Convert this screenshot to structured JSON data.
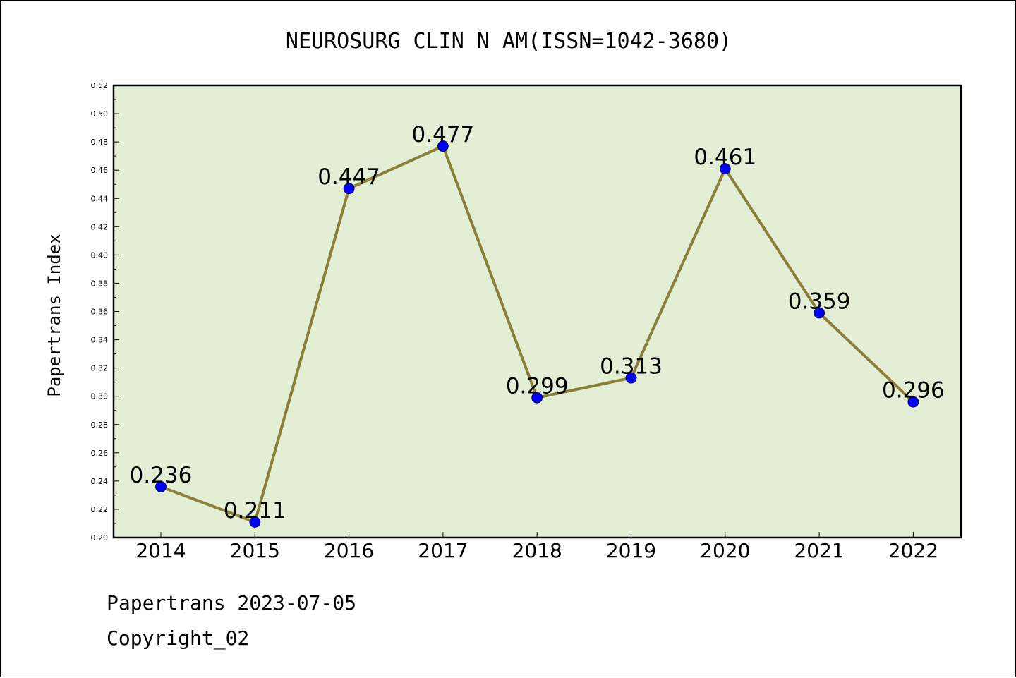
{
  "chart_data": {
    "type": "line",
    "title": "NEUROSURG CLIN N AM(ISSN=1042-3680)",
    "xlabel": "",
    "ylabel": "Papertrans Index",
    "categories": [
      "2014",
      "2015",
      "2016",
      "2017",
      "2018",
      "2019",
      "2020",
      "2021",
      "2022"
    ],
    "series": [
      {
        "values": [
          0.236,
          0.211,
          0.447,
          0.477,
          0.299,
          0.313,
          0.461,
          0.359,
          0.296
        ]
      }
    ],
    "data_labels": [
      "0.236",
      "0.211",
      "0.447",
      "0.477",
      "0.299",
      "0.313",
      "0.461",
      "0.359",
      "0.296"
    ],
    "ylim": [
      0.2,
      0.52
    ],
    "yticks": [
      "0.20",
      "0.22",
      "0.24",
      "0.26",
      "0.28",
      "0.30",
      "0.32",
      "0.34",
      "0.36",
      "0.38",
      "0.40",
      "0.42",
      "0.44",
      "0.46",
      "0.48",
      "0.50",
      "0.52"
    ],
    "grid": false,
    "colors": {
      "plot_background": "#e2efd5",
      "line": "#8b7d3a",
      "marker": "#0000ff"
    }
  },
  "footer": {
    "line1": "Papertrans 2023-07-05",
    "line2": "Copyright_02"
  }
}
